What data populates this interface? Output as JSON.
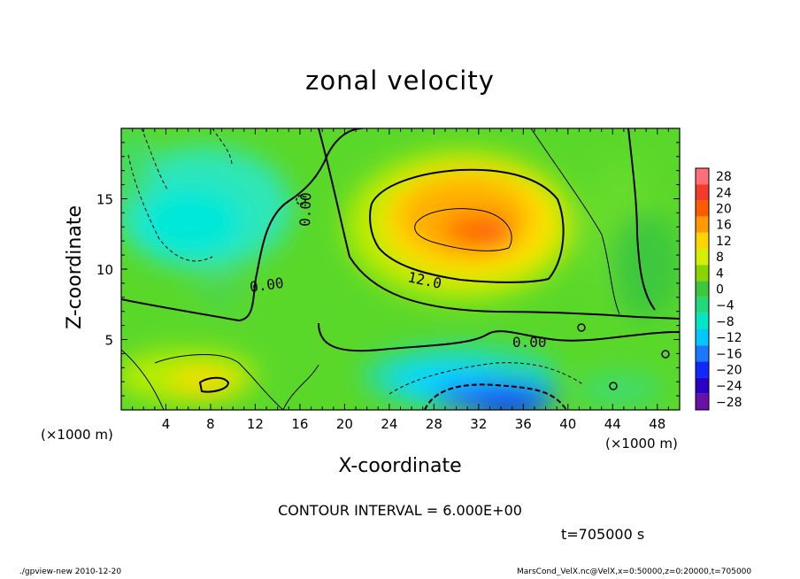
{
  "chart_data": {
    "type": "heatmap",
    "title": "zonal velocity",
    "xlabel": "X-coordinate",
    "ylabel": "Z-coordinate",
    "x_unit": "(×1000 m)",
    "y_unit": "(×1000 m)",
    "xlim": [
      0,
      50
    ],
    "ylim": [
      0,
      20
    ],
    "x_ticks": [
      4,
      8,
      12,
      16,
      20,
      24,
      28,
      32,
      36,
      40,
      44,
      48
    ],
    "y_ticks": [
      5,
      10,
      15
    ],
    "colorbar": {
      "levels": [
        28,
        24,
        20,
        16,
        12,
        8,
        4,
        0,
        -4,
        -8,
        -12,
        -16,
        -20,
        -24,
        -28
      ],
      "colors": [
        "#ff6f7a",
        "#f53a2a",
        "#ff5c00",
        "#ff9a00",
        "#ffd400",
        "#d2f000",
        "#8ad400",
        "#3cc83c",
        "#22d878",
        "#00e6c6",
        "#00c8ff",
        "#1a78ff",
        "#0f28ff",
        "#2a00c8",
        "#6a0fa8"
      ]
    },
    "contour_labels": [
      "12.0",
      "0.00",
      "0.00",
      "0.00"
    ],
    "contour_interval_text": "CONTOUR INTERVAL = 6.000E+00",
    "time_text": "t=705000 s",
    "footer_left": "./gpview-new  2010-12-20",
    "footer_right": "MarsCond_VelX.nc@VelX,x=0:50000,z=0:20000,t=705000"
  }
}
